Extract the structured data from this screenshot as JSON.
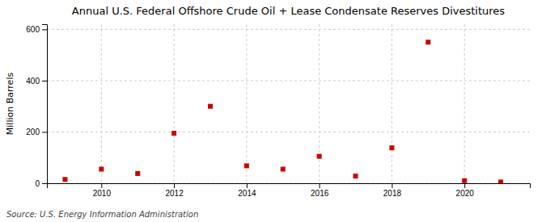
{
  "chart_data": {
    "type": "scatter",
    "title": "Annual U.S. Federal Offshore Crude Oil + Lease Condensate Reserves Divestitures",
    "y_label": "Million Barrels",
    "source": "Source: U.S. Energy Information Administration",
    "x": [
      2009,
      2010,
      2011,
      2012,
      2013,
      2014,
      2015,
      2016,
      2017,
      2018,
      2019,
      2020,
      2021
    ],
    "values": [
      15,
      55,
      38,
      195,
      300,
      68,
      55,
      105,
      28,
      138,
      550,
      10,
      5
    ],
    "color": "#cc0000",
    "marker": "square",
    "xlim": [
      2008.5,
      2021.8
    ],
    "ylim": [
      0,
      620
    ],
    "xticks": [
      2010,
      2012,
      2014,
      2016,
      2018,
      2020
    ],
    "yticks": [
      0,
      200,
      400,
      600
    ],
    "grid": true
  }
}
